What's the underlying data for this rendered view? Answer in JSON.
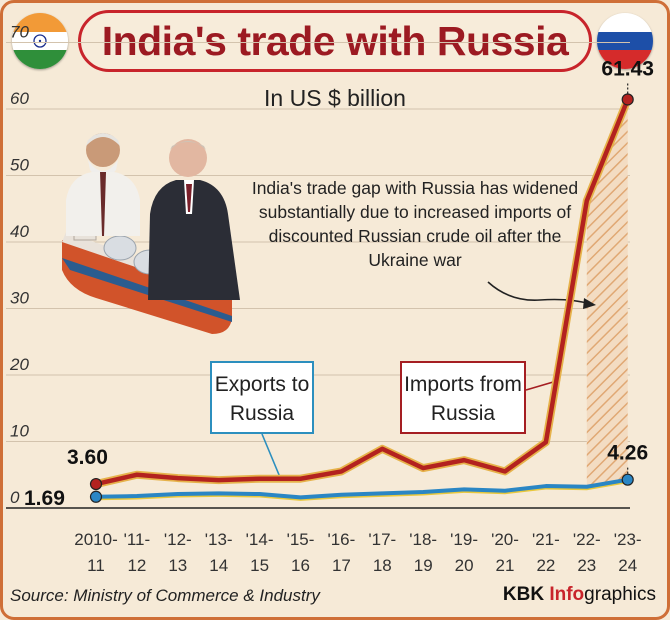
{
  "title": "India's trade with Russia",
  "subtitle": "In US $ billion",
  "annotation": "India's trade gap with Russia has widened substantially due to increased imports of discounted Russian crude oil after the Ukraine war",
  "callouts": {
    "exports": "Exports to Russia",
    "imports": "Imports from Russia"
  },
  "source": "Source: Ministry of Commerce & Industry",
  "credit": {
    "brand": "KBK",
    "accent": "Info",
    "rest": "graphics"
  },
  "colors": {
    "imports": "#b3221f",
    "exports": "#2a86c4",
    "exports_fill": "#e9c83c",
    "title": "#9c1a22",
    "frame": "#cf6f37"
  },
  "chart_data": {
    "type": "line",
    "categories": [
      "2010-11",
      "'11-12",
      "'12-13",
      "'13-14",
      "'14-15",
      "'15-16",
      "'16-17",
      "'17-18",
      "'18-19",
      "'19-20",
      "'20-21",
      "'21-22",
      "'22-23",
      "'23-24"
    ],
    "tick_lines": [
      [
        "2010-",
        "11"
      ],
      [
        "'11-",
        "12"
      ],
      [
        "'12-",
        "13"
      ],
      [
        "'13-",
        "14"
      ],
      [
        "'14-",
        "15"
      ],
      [
        "'15-",
        "16"
      ],
      [
        "'16-",
        "17"
      ],
      [
        "'17-",
        "18"
      ],
      [
        "'18-",
        "19"
      ],
      [
        "'19-",
        "20"
      ],
      [
        "'20-",
        "21"
      ],
      [
        "'21-",
        "22"
      ],
      [
        "'22-",
        "23"
      ],
      [
        "'23-",
        "24"
      ]
    ],
    "series": [
      {
        "name": "Imports from Russia",
        "values": [
          3.6,
          5.0,
          4.5,
          4.2,
          4.4,
          4.4,
          5.5,
          8.9,
          6.0,
          7.2,
          5.5,
          9.9,
          46.2,
          61.43
        ]
      },
      {
        "name": "Exports to Russia",
        "values": [
          1.69,
          1.8,
          2.1,
          2.2,
          2.1,
          1.6,
          2.0,
          2.2,
          2.4,
          2.8,
          2.6,
          3.3,
          3.2,
          4.26
        ]
      }
    ],
    "labels": {
      "imports_start": "3.60",
      "imports_end": "61.43",
      "exports_start": "1.69",
      "exports_end": "4.26"
    },
    "yticks": [
      "0",
      "10",
      "20",
      "30",
      "40",
      "50",
      "60",
      "70"
    ],
    "ylim": [
      0,
      70
    ],
    "grid": true
  }
}
